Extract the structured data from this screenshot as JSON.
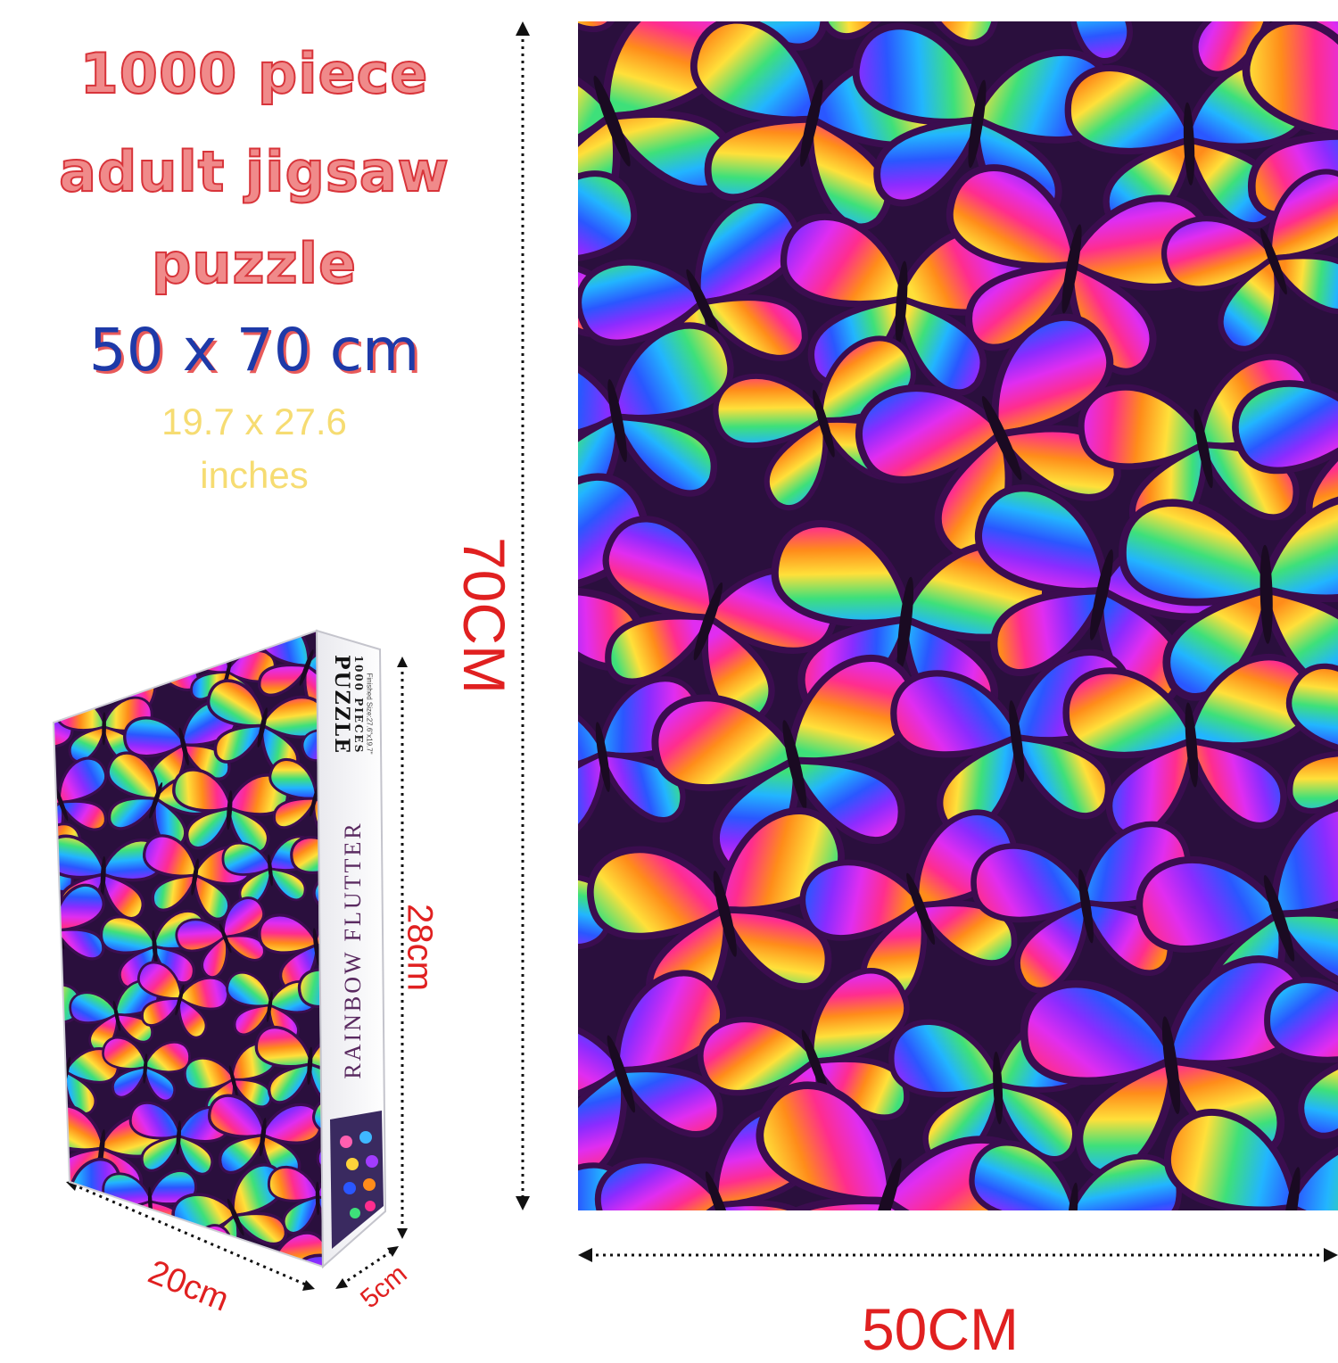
{
  "headline": {
    "line1": "1000 piece",
    "line2": "adult jigsaw",
    "line3": "puzzle",
    "size_cm": "50 x 70 cm",
    "size_in_line1": "19.7 x 27.6",
    "size_in_line2": "inches"
  },
  "puzzle_dimensions": {
    "height_label": "70CM",
    "width_label": "50CM"
  },
  "box": {
    "brand": "PUZZLE",
    "pieces": "1000 PIECES",
    "finished_size": "Finished Size:27.6\"x19.7\"",
    "title": "RAINBOW FLUTTER",
    "height_label": "28cm",
    "width_label": "20cm",
    "depth_label": "5cm"
  },
  "colors": {
    "title_red": "#d8343a",
    "size_blue": "#1e3aa8",
    "inch_yellow": "#f6dc72",
    "dimension_red": "#e02020",
    "wing_palette": [
      "#ff2d8e",
      "#ff8c1a",
      "#ffe03a",
      "#3ee07a",
      "#22b5ff",
      "#2a57ff",
      "#8a2cff",
      "#e02df0"
    ],
    "background_dark": "#2a0f3d"
  }
}
